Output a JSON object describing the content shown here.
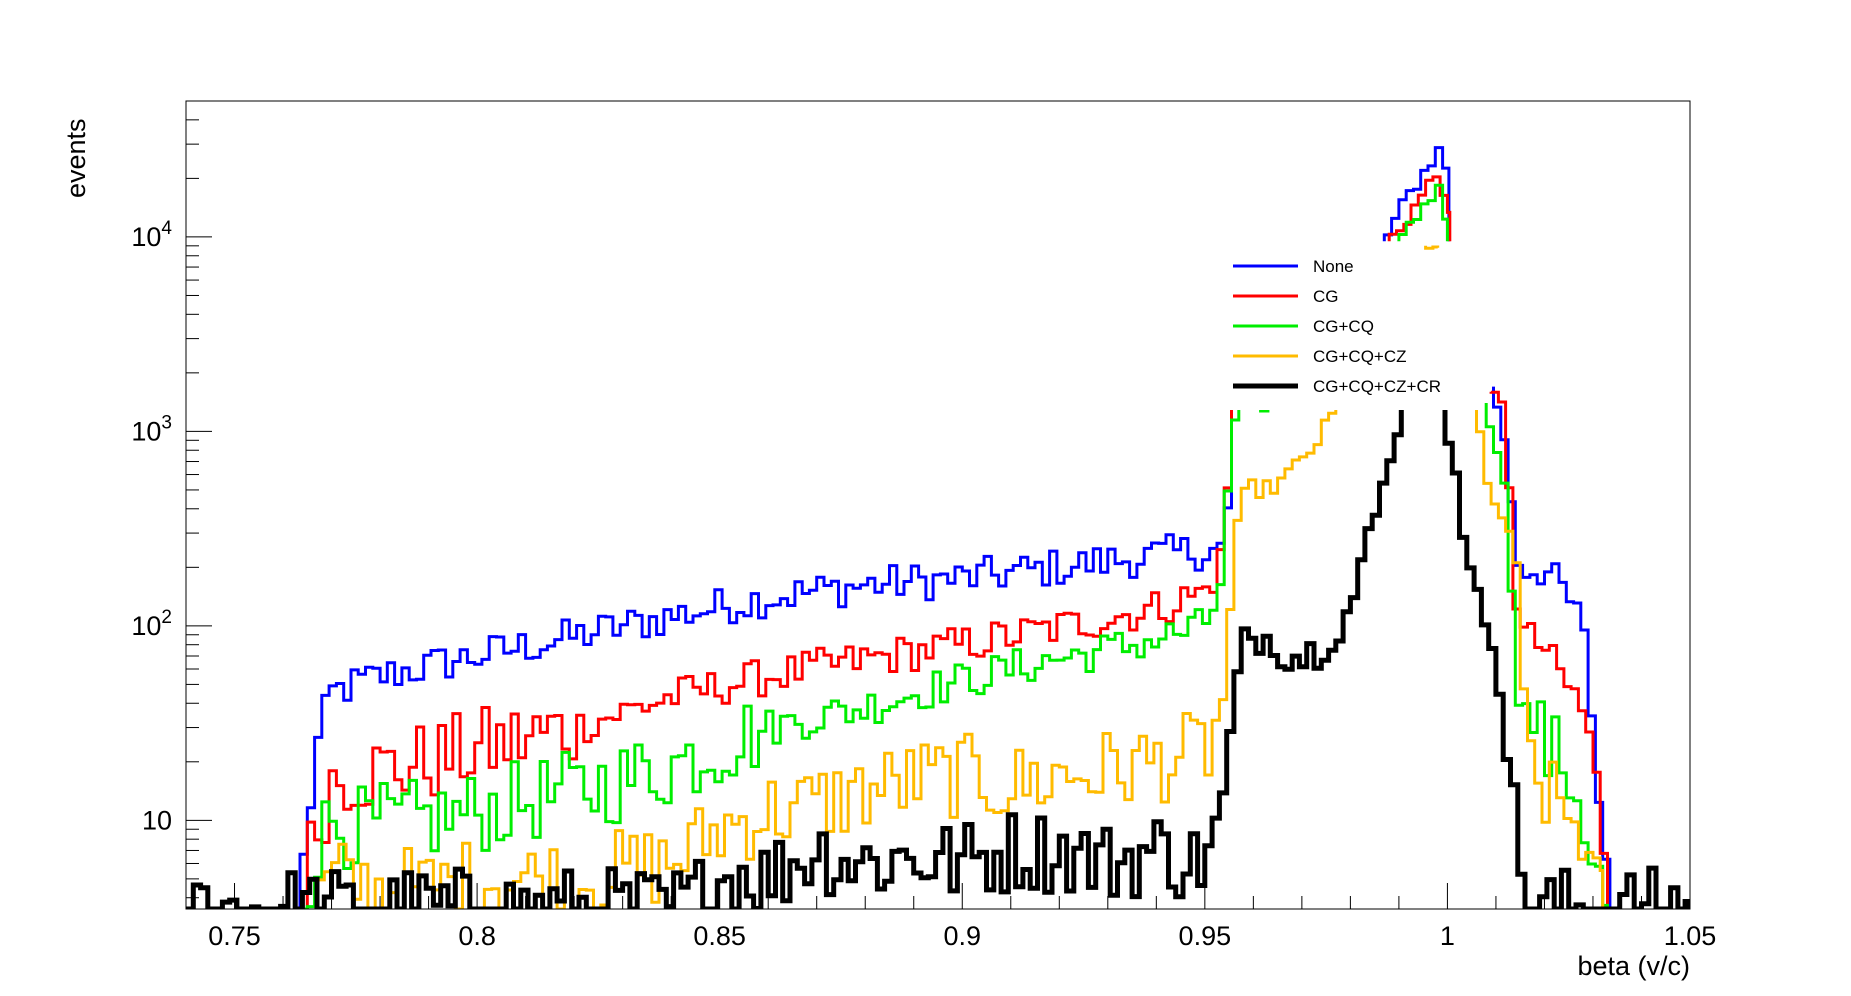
{
  "chart_data": {
    "type": "line",
    "xlabel": "beta (v/c)",
    "ylabel": "events",
    "log_y": true,
    "xlim": [
      0.74,
      1.05
    ],
    "ylim": [
      3.5,
      50000
    ],
    "x_ticks": [
      "0.75",
      "0.8",
      "0.85",
      "0.9",
      "0.95",
      "1",
      "1.05"
    ],
    "y_ticks": [
      {
        "base": "10",
        "exp": ""
      },
      {
        "base": "10",
        "exp": "2"
      },
      {
        "base": "10",
        "exp": "3"
      },
      {
        "base": "10",
        "exp": "4"
      }
    ],
    "legend_position": "top-right",
    "series": [
      {
        "name": "None",
        "color": "#0000ff",
        "points": [
          [
            0.7635,
            3.5
          ],
          [
            0.7655,
            13
          ],
          [
            0.768,
            30
          ],
          [
            0.77,
            45
          ],
          [
            0.775,
            50
          ],
          [
            0.78,
            55
          ],
          [
            0.79,
            62
          ],
          [
            0.8,
            70
          ],
          [
            0.82,
            88
          ],
          [
            0.84,
            112
          ],
          [
            0.86,
            140
          ],
          [
            0.88,
            162
          ],
          [
            0.9,
            175
          ],
          [
            0.92,
            200
          ],
          [
            0.94,
            230
          ],
          [
            0.95,
            245
          ],
          [
            0.9545,
            250
          ],
          [
            0.955,
            600
          ],
          [
            0.956,
            1500
          ],
          [
            0.9565,
            1750
          ]
        ]
      },
      {
        "name": "None",
        "color": "#0000ff",
        "points": [
          [
            0.987,
            9500
          ],
          [
            0.99,
            13000
          ],
          [
            0.993,
            18000
          ],
          [
            0.996,
            23000
          ],
          [
            0.998,
            28000
          ],
          [
            0.9995,
            26000
          ],
          [
            1.0,
            17000
          ],
          [
            1.0003,
            9500
          ]
        ]
      },
      {
        "name": "None",
        "color": "#0000ff",
        "points": [
          [
            1.0095,
            1700
          ],
          [
            1.0105,
            1300
          ],
          [
            1.012,
            800
          ],
          [
            1.0135,
            400
          ],
          [
            1.0145,
            220
          ],
          [
            1.016,
            200
          ],
          [
            1.02,
            195
          ],
          [
            1.024,
            150
          ],
          [
            1.027,
            110
          ],
          [
            1.029,
            70
          ],
          [
            1.0305,
            20
          ],
          [
            1.032,
            8
          ],
          [
            1.033,
            6
          ],
          [
            1.0335,
            3.5
          ]
        ]
      },
      {
        "name": "CG",
        "color": "#ff0000",
        "points": [
          [
            0.7635,
            3.5
          ],
          [
            0.7645,
            5
          ],
          [
            0.766,
            7
          ],
          [
            0.768,
            11
          ],
          [
            0.77,
            16
          ],
          [
            0.772,
            17
          ],
          [
            0.78,
            18
          ],
          [
            0.79,
            20
          ],
          [
            0.8,
            23
          ],
          [
            0.82,
            30
          ],
          [
            0.84,
            43
          ],
          [
            0.86,
            55
          ],
          [
            0.88,
            67
          ],
          [
            0.9,
            80
          ],
          [
            0.92,
            98
          ],
          [
            0.94,
            123
          ],
          [
            0.95,
            150
          ],
          [
            0.953,
            200
          ],
          [
            0.9545,
            300
          ],
          [
            0.955,
            900
          ],
          [
            0.956,
            1600
          ],
          [
            0.957,
            1750
          ]
        ]
      },
      {
        "name": "CG",
        "color": "#ff0000",
        "points": [
          [
            0.988,
            9500
          ],
          [
            0.99,
            11000
          ],
          [
            0.993,
            14000
          ],
          [
            0.996,
            18000
          ],
          [
            0.9985,
            22000
          ],
          [
            1.0,
            15000
          ],
          [
            1.0005,
            9500
          ]
        ]
      },
      {
        "name": "CG",
        "color": "#ff0000",
        "points": [
          [
            1.009,
            1600
          ],
          [
            1.01,
            1450
          ],
          [
            1.012,
            1250
          ],
          [
            1.0125,
            850
          ],
          [
            1.013,
            350
          ],
          [
            1.014,
            160
          ],
          [
            1.015,
            95
          ],
          [
            1.017,
            85
          ],
          [
            1.02,
            78
          ],
          [
            1.022,
            62
          ],
          [
            1.024,
            52
          ],
          [
            1.026,
            45
          ],
          [
            1.028,
            35
          ],
          [
            1.03,
            25
          ],
          [
            1.031,
            12
          ],
          [
            1.032,
            6
          ],
          [
            1.033,
            4
          ],
          [
            1.0335,
            3.5
          ]
        ]
      },
      {
        "name": "CG+CQ",
        "color": "#00ee00",
        "points": [
          [
            0.7635,
            3.5
          ],
          [
            0.766,
            6
          ],
          [
            0.768,
            8
          ],
          [
            0.77,
            10
          ],
          [
            0.775,
            9
          ],
          [
            0.78,
            9.5
          ],
          [
            0.79,
            10
          ],
          [
            0.8,
            11
          ],
          [
            0.81,
            12.5
          ],
          [
            0.82,
            14
          ],
          [
            0.83,
            16
          ],
          [
            0.84,
            19
          ],
          [
            0.85,
            24
          ],
          [
            0.86,
            30
          ],
          [
            0.87,
            34
          ],
          [
            0.88,
            38
          ],
          [
            0.89,
            45
          ],
          [
            0.9,
            52
          ],
          [
            0.91,
            60
          ],
          [
            0.92,
            68
          ],
          [
            0.93,
            75
          ],
          [
            0.94,
            85
          ],
          [
            0.95,
            100
          ],
          [
            0.953,
            150
          ],
          [
            0.9545,
            300
          ],
          [
            0.955,
            700
          ],
          [
            0.956,
            1100
          ],
          [
            0.958,
            1350
          ],
          [
            0.961,
            1400
          ],
          [
            0.963,
            1380
          ]
        ]
      },
      {
        "name": "CG+CQ",
        "color": "#00ee00",
        "points": [
          [
            0.99,
            9500
          ],
          [
            0.993,
            12000
          ],
          [
            0.996,
            16000
          ],
          [
            0.998,
            18000
          ],
          [
            0.9995,
            13000
          ],
          [
            1.0,
            9500
          ]
        ]
      },
      {
        "name": "CG+CQ",
        "color": "#00ee00",
        "points": [
          [
            1.008,
            1400
          ],
          [
            1.009,
            1100
          ],
          [
            1.01,
            900
          ],
          [
            1.011,
            700
          ],
          [
            1.012,
            450
          ],
          [
            1.013,
            220
          ],
          [
            1.014,
            90
          ],
          [
            1.015,
            40
          ],
          [
            1.017,
            33
          ],
          [
            1.019,
            28
          ],
          [
            1.021,
            22
          ],
          [
            1.023,
            21
          ],
          [
            1.025,
            18
          ],
          [
            1.027,
            13
          ],
          [
            1.029,
            9
          ],
          [
            1.03,
            6
          ],
          [
            1.032,
            4
          ],
          [
            1.033,
            3.5
          ]
        ]
      },
      {
        "name": "CG+CQ+CZ",
        "color": "#ffbb00",
        "points": [
          [
            0.767,
            3.5
          ],
          [
            0.768,
            4
          ],
          [
            0.77,
            5
          ],
          [
            0.78,
            4.5
          ],
          [
            0.79,
            4.5
          ],
          [
            0.8,
            5
          ],
          [
            0.81,
            5
          ],
          [
            0.82,
            5
          ],
          [
            0.83,
            5.5
          ],
          [
            0.84,
            6
          ],
          [
            0.85,
            9
          ],
          [
            0.86,
            11
          ],
          [
            0.87,
            12
          ],
          [
            0.88,
            14
          ],
          [
            0.89,
            16
          ],
          [
            0.9,
            17
          ],
          [
            0.91,
            15
          ],
          [
            0.92,
            17
          ],
          [
            0.93,
            18
          ],
          [
            0.94,
            20
          ],
          [
            0.948,
            22
          ],
          [
            0.951,
            24
          ],
          [
            0.953,
            30
          ],
          [
            0.9545,
            60
          ],
          [
            0.956,
            250
          ],
          [
            0.958,
            450
          ],
          [
            0.96,
            520
          ],
          [
            0.963,
            500
          ],
          [
            0.966,
            560
          ],
          [
            0.97,
            700
          ],
          [
            0.974,
            950
          ],
          [
            0.977,
            1300
          ],
          [
            0.98,
            1700
          ]
        ]
      },
      {
        "name": "CG+CQ+CZ",
        "color": "#ffbb00",
        "points": [
          [
            0.9955,
            9000
          ],
          [
            0.9965,
            9500
          ],
          [
            0.9975,
            9200
          ],
          [
            0.998,
            8800
          ]
        ]
      },
      {
        "name": "CG+CQ+CZ",
        "color": "#ffbb00",
        "points": [
          [
            1.006,
            1600
          ],
          [
            1.007,
            800
          ],
          [
            1.008,
            500
          ],
          [
            1.01,
            400
          ],
          [
            1.012,
            350
          ],
          [
            1.013,
            300
          ],
          [
            1.014,
            220
          ],
          [
            1.015,
            90
          ],
          [
            1.016,
            30
          ],
          [
            1.018,
            16
          ],
          [
            1.02,
            14
          ],
          [
            1.022,
            12
          ],
          [
            1.024,
            11
          ],
          [
            1.026,
            10
          ],
          [
            1.028,
            9
          ],
          [
            1.029,
            6
          ],
          [
            1.03,
            5
          ],
          [
            1.031,
            4
          ],
          [
            1.032,
            3.5
          ]
        ]
      },
      {
        "name": "CG+CQ+CZ+CR",
        "color": "#000000",
        "points": [
          [
            0.74,
            3.5
          ],
          [
            0.84,
            3.5
          ],
          [
            0.845,
            4
          ],
          [
            0.85,
            5
          ],
          [
            0.855,
            5.5
          ],
          [
            0.86,
            5
          ],
          [
            0.865,
            6
          ],
          [
            0.87,
            7
          ],
          [
            0.88,
            6
          ],
          [
            0.89,
            6.5
          ],
          [
            0.9,
            6
          ],
          [
            0.91,
            7
          ],
          [
            0.92,
            7
          ],
          [
            0.93,
            6
          ],
          [
            0.94,
            7
          ],
          [
            0.948,
            6
          ],
          [
            0.951,
            7
          ],
          [
            0.953,
            9
          ],
          [
            0.9545,
            15
          ],
          [
            0.956,
            40
          ],
          [
            0.958,
            80
          ],
          [
            0.961,
            90
          ],
          [
            0.964,
            85
          ],
          [
            0.967,
            72
          ],
          [
            0.97,
            70
          ],
          [
            0.973,
            75
          ],
          [
            0.976,
            90
          ],
          [
            0.979,
            110
          ],
          [
            0.981,
            150
          ],
          [
            0.983,
            230
          ],
          [
            0.985,
            350
          ],
          [
            0.987,
            550
          ],
          [
            0.989,
            900
          ],
          [
            0.991,
            1400
          ],
          [
            0.992,
            1750
          ]
        ]
      },
      {
        "name": "CG+CQ+CZ+CR",
        "color": "#000000",
        "points": [
          [
            0.9995,
            1750
          ],
          [
            1.0,
            1000
          ],
          [
            1.002,
            600
          ],
          [
            1.003,
            350
          ],
          [
            1.004,
            220
          ],
          [
            1.005,
            160
          ],
          [
            1.006,
            130
          ],
          [
            1.008,
            110
          ],
          [
            1.009,
            100
          ],
          [
            1.01,
            75
          ],
          [
            1.011,
            50
          ],
          [
            1.012,
            30
          ],
          [
            1.013,
            15
          ],
          [
            1.014,
            9
          ],
          [
            1.015,
            6
          ],
          [
            1.016,
            4
          ],
          [
            1.017,
            3.7
          ],
          [
            1.02,
            3.5
          ],
          [
            1.05,
            3.5
          ]
        ]
      }
    ]
  }
}
